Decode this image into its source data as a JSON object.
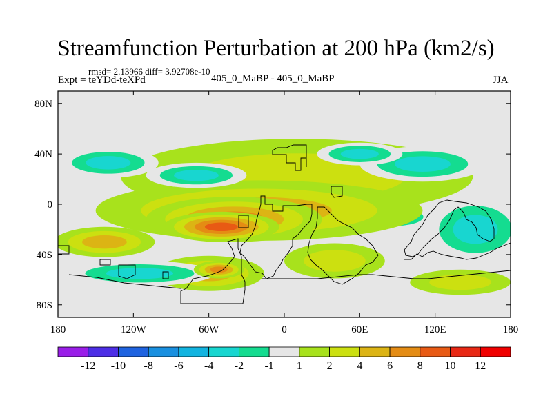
{
  "header": {
    "title": "Streamfunction Perturbation at 200 hPa (km2/s)",
    "stats": "rmsd= 2.13966  diff= 3.92708e-10",
    "expt": "Expt = teYDd-teXPd",
    "center_label": "405_0_MaBP - 405_0_MaBP",
    "season": "JJA"
  },
  "chart_data": {
    "type": "heatmap",
    "title": "Streamfunction Perturbation at 200 hPa (km2/s)",
    "xlabel": "",
    "ylabel": "",
    "x_range": [
      -180,
      180
    ],
    "y_range": [
      -90,
      90
    ],
    "x_ticks": [
      {
        "value": -180,
        "label": "180"
      },
      {
        "value": -120,
        "label": "120W"
      },
      {
        "value": -60,
        "label": "60W"
      },
      {
        "value": 0,
        "label": "0"
      },
      {
        "value": 60,
        "label": "60E"
      },
      {
        "value": 120,
        "label": "120E"
      },
      {
        "value": 180,
        "label": "180"
      }
    ],
    "y_ticks": [
      {
        "value": 80,
        "label": "80N"
      },
      {
        "value": 40,
        "label": "40N"
      },
      {
        "value": 0,
        "label": "0"
      },
      {
        "value": -40,
        "label": "40S"
      },
      {
        "value": -80,
        "label": "80S"
      }
    ],
    "colorbar": {
      "labels": [
        "-12",
        "-10",
        "-8",
        "-6",
        "-4",
        "-2",
        "-1",
        "1",
        "2",
        "4",
        "6",
        "8",
        "10",
        "12"
      ],
      "colors": [
        "#9a1ee8",
        "#4d2ee6",
        "#1f63e0",
        "#1990e0",
        "#12b4e0",
        "#18d6d0",
        "#14dc90",
        "#e6e6e6",
        "#a8e21c",
        "#cce010",
        "#dcb414",
        "#e48c14",
        "#e85a14",
        "#e82814",
        "#f00000"
      ]
    },
    "features": [
      {
        "type": "high",
        "lon": -50,
        "lat": -18,
        "level": 8,
        "ellipse": [
          46,
          12
        ]
      },
      {
        "type": "high",
        "lon": -40,
        "lat": -12,
        "level": 6,
        "ellipse": [
          70,
          18
        ]
      },
      {
        "type": "high",
        "lon": -20,
        "lat": -5,
        "level": 4,
        "ellipse": [
          130,
          24
        ]
      },
      {
        "type": "high",
        "lon": 10,
        "lat": 22,
        "level": 2,
        "ellipse": [
          140,
          30
        ]
      },
      {
        "type": "high",
        "lon": -143,
        "lat": -30,
        "level": 4,
        "ellipse": [
          40,
          12
        ]
      },
      {
        "type": "high",
        "lon": -60,
        "lat": -55,
        "level": 4,
        "ellipse": [
          44,
          14
        ]
      },
      {
        "type": "high",
        "lon": -52,
        "lat": -52,
        "level": 6,
        "ellipse": [
          20,
          7
        ]
      },
      {
        "type": "high",
        "lon": 40,
        "lat": -45,
        "level": 2,
        "ellipse": [
          40,
          14
        ]
      },
      {
        "type": "high",
        "lon": 140,
        "lat": -62,
        "level": 2,
        "ellipse": [
          40,
          10
        ]
      },
      {
        "type": "high",
        "lon": 25,
        "lat": -10,
        "level": 2,
        "ellipse": [
          34,
          14
        ]
      },
      {
        "type": "low",
        "lon": 152,
        "lat": -20,
        "level": -4,
        "ellipse": [
          40,
          26
        ]
      },
      {
        "type": "low",
        "lon": 110,
        "lat": 32,
        "level": -4,
        "ellipse": [
          50,
          14
        ]
      },
      {
        "type": "low",
        "lon": -140,
        "lat": 33,
        "level": -4,
        "ellipse": [
          40,
          12
        ]
      },
      {
        "type": "low",
        "lon": -115,
        "lat": -55,
        "level": -4,
        "ellipse": [
          60,
          10
        ]
      },
      {
        "type": "low",
        "lon": -70,
        "lat": 23,
        "level": -4,
        "ellipse": [
          40,
          10
        ]
      },
      {
        "type": "low",
        "lon": 86,
        "lat": -10,
        "level": -2,
        "ellipse": [
          40,
          12
        ]
      },
      {
        "type": "low",
        "lon": 60,
        "lat": 40,
        "level": -4,
        "ellipse": [
          34,
          9
        ]
      }
    ]
  }
}
